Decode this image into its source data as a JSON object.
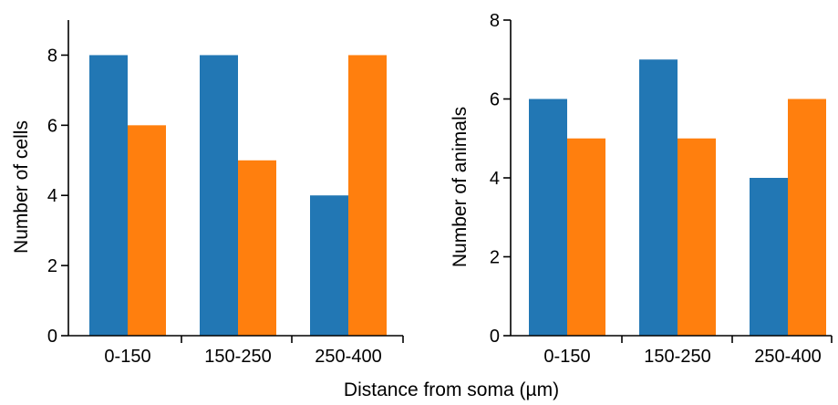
{
  "figure": {
    "shared_xlabel": "Distance from soma (µm)"
  },
  "colors": {
    "series_a": "#2277b4",
    "series_b": "#ff7f0e"
  },
  "chart_data": [
    {
      "type": "bar",
      "title": "",
      "categories": [
        "0-150",
        "150-250",
        "250-400"
      ],
      "series": [
        {
          "values": [
            8,
            8,
            4
          ]
        },
        {
          "values": [
            6,
            5,
            8
          ]
        }
      ],
      "ylabel": "Number of cells",
      "ylim": [
        0,
        9
      ],
      "yticks": [
        0,
        2,
        4,
        6,
        8
      ],
      "grid": false,
      "legend": "none"
    },
    {
      "type": "bar",
      "title": "",
      "categories": [
        "0-150",
        "150-250",
        "250-400"
      ],
      "series": [
        {
          "values": [
            6,
            7,
            4
          ]
        },
        {
          "values": [
            5,
            5,
            6
          ]
        }
      ],
      "ylabel": "Number of animals",
      "ylim": [
        0,
        8
      ],
      "yticks": [
        0,
        2,
        4,
        6,
        8
      ],
      "grid": false,
      "legend": "none"
    }
  ]
}
